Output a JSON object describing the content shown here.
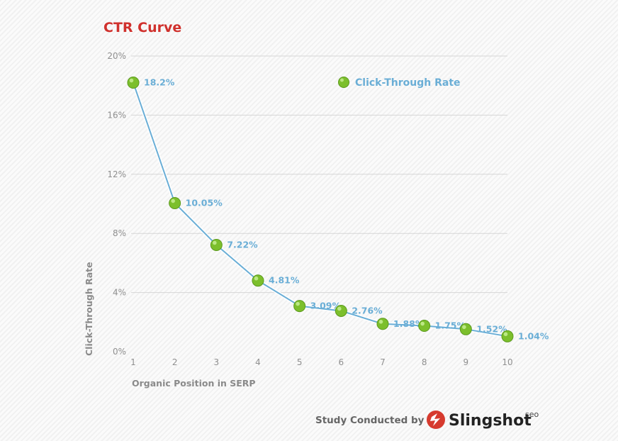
{
  "chart_data": {
    "type": "line",
    "title": "CTR Curve",
    "xlabel": "Organic Position in SERP",
    "ylabel": "Click-Through Rate",
    "categories": [
      "1",
      "2",
      "3",
      "4",
      "5",
      "6",
      "7",
      "8",
      "9",
      "10"
    ],
    "ylim": [
      0,
      20
    ],
    "yticks": [
      0,
      4,
      8,
      12,
      16,
      20
    ],
    "ytick_labels": [
      "0%",
      "4%",
      "8%",
      "12%",
      "16%",
      "20%"
    ],
    "series": [
      {
        "name": "Click-Through Rate",
        "values": [
          18.2,
          10.05,
          7.22,
          4.81,
          3.09,
          2.76,
          1.88,
          1.75,
          1.52,
          1.04
        ],
        "labels": [
          "18.2%",
          "10.05%",
          "7.22%",
          "4.81%",
          "3.09%",
          "2.76%",
          "1.88%",
          "1.75%",
          "1.52%",
          "1.04%"
        ]
      }
    ],
    "legend_position": "top-right",
    "grid": true
  },
  "credit": {
    "prefix": "Study Conducted by",
    "brand": "Slingshot",
    "brand_sup": "seo"
  },
  "colors": {
    "title": "#d0312d",
    "line": "#6aaed6",
    "marker": "#7cbf2c",
    "grid": "#d6d6d6",
    "logo": "#d63a2e"
  }
}
